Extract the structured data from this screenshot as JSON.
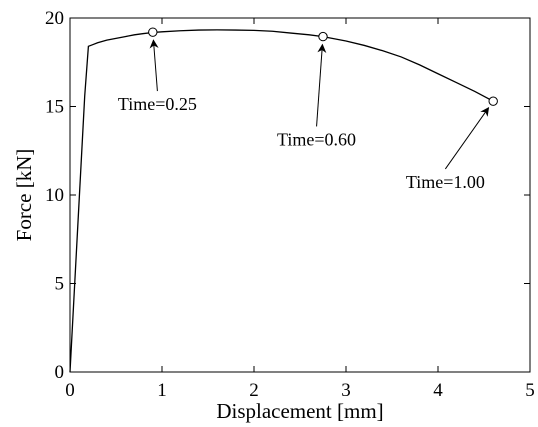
{
  "chart_data": {
    "type": "line",
    "xlabel": "Displacement [mm]",
    "ylabel": "Force [kN]",
    "xlim": [
      0,
      5
    ],
    "ylim": [
      0,
      20
    ],
    "xticks": [
      0,
      1,
      2,
      3,
      4,
      5
    ],
    "yticks": [
      0,
      5,
      10,
      15,
      20
    ],
    "grid": false,
    "series": [
      {
        "x": [
          0,
          0.04,
          0.08,
          0.12,
          0.16,
          0.2,
          0.25,
          0.3,
          0.4,
          0.5,
          0.6,
          0.7,
          0.8,
          0.9,
          1.0,
          1.2,
          1.4,
          1.6,
          1.8,
          2.0,
          2.2,
          2.4,
          2.6,
          2.75,
          3.0,
          3.2,
          3.4,
          3.6,
          3.8,
          4.0,
          4.2,
          4.4,
          4.6
        ],
        "y": [
          0,
          3.9,
          7.8,
          11.7,
          15.6,
          18.4,
          18.5,
          18.6,
          18.75,
          18.85,
          18.95,
          19.05,
          19.12,
          19.18,
          19.22,
          19.28,
          19.32,
          19.33,
          19.32,
          19.3,
          19.25,
          19.15,
          19.05,
          18.95,
          18.7,
          18.45,
          18.15,
          17.8,
          17.35,
          16.85,
          16.35,
          15.85,
          15.3
        ]
      }
    ],
    "markers": [
      {
        "x": 0.9,
        "y": 19.2,
        "label": "Time=0.25",
        "label_x": 0.95,
        "label_y": 14.8
      },
      {
        "x": 2.75,
        "y": 18.95,
        "label": "Time=0.60",
        "label_x": 2.68,
        "label_y": 12.8
      },
      {
        "x": 4.6,
        "y": 15.3,
        "label": "Time=1.00",
        "label_x": 4.08,
        "label_y": 10.4
      }
    ]
  }
}
